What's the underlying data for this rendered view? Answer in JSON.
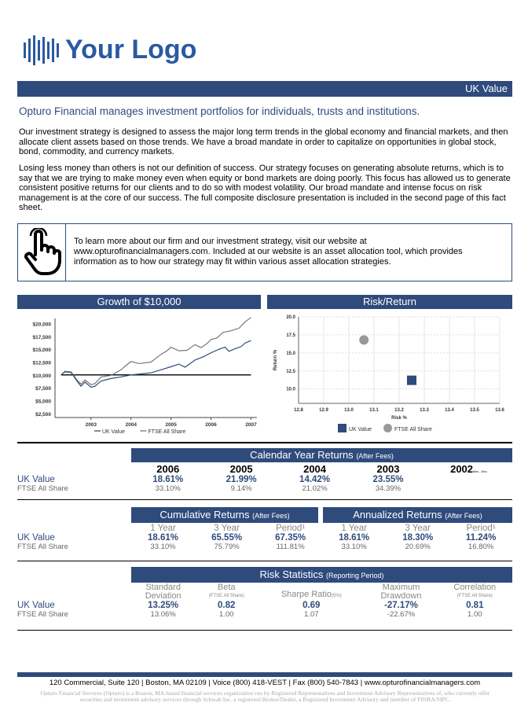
{
  "logo": {
    "text": "Your Logo"
  },
  "header": {
    "title": "UK Value"
  },
  "tagline": "Opturo Financial manages investment portfolios for individuals, trusts and institutions.",
  "paragraphs": [
    "Our investment strategy is designed to assess the major long term trends in the global economy and financial markets, and then allocate client assets based on those trends. We have a broad mandate in order to capitalize on opportunities in global stock, bond, commodity, and currency markets.",
    "Losing less money than others is not our definition of success. Our strategy focuses on generating absolute returns, which is to say that we are trying to make money even when equity or bond markets are doing poorly. This focus has allowed us to generate consistent positive returns for our clients and to do so with modest volatility. Our broad mandate and intense focus on risk management is at the core of our success. The full composite disclosure presentation is included in the second page of this fact sheet."
  ],
  "info": {
    "icon": "hand-pointer-icon",
    "text": "To learn more about our firm and our investment strategy, visit our website at www.opturofinancialmanagers.com. Included at our website is an asset allocation tool, which provides information as to how our strategy may fit within various asset allocation strategies."
  },
  "chart_data": [
    {
      "type": "line",
      "title": "Growth of $10,000",
      "ylim": [
        2500,
        21000
      ],
      "yticks": [
        "$2,500",
        "$5,000",
        "$7,500",
        "$10,000",
        "$12,500",
        "$15,000",
        "$17,500",
        "$20,000"
      ],
      "ytick_values": [
        2500,
        5000,
        7500,
        10000,
        12500,
        15000,
        17500,
        20000
      ],
      "xticks": [
        "2003",
        "2004",
        "2005",
        "2006",
        "2007"
      ],
      "xtick_values": [
        2003,
        2004,
        2005,
        2006,
        2007
      ],
      "xlim": [
        2002.1,
        2007.05
      ],
      "baseline": 10000,
      "series": [
        {
          "name": "UK Value",
          "color": "#2f4b7c",
          "x": [
            2002.25,
            2002.35,
            2002.5,
            2002.65,
            2002.75,
            2002.85,
            2003.0,
            2003.1,
            2003.25,
            2003.5,
            2003.75,
            2004.0,
            2004.25,
            2004.5,
            2004.75,
            2005.0,
            2005.2,
            2005.35,
            2005.6,
            2005.8,
            2006.0,
            2006.2,
            2006.35,
            2006.45,
            2006.6,
            2006.75,
            2006.85,
            2007.0
          ],
          "y": [
            10000,
            10600,
            10500,
            8800,
            7800,
            8600,
            7600,
            7800,
            8800,
            9300,
            9600,
            10000,
            10200,
            10400,
            11000,
            11600,
            12100,
            11500,
            12900,
            13500,
            14300,
            15000,
            15400,
            14600,
            15100,
            15500,
            16200,
            16700
          ]
        },
        {
          "name": "FTSE All Share",
          "color": "#777777",
          "x": [
            2002.25,
            2002.35,
            2002.5,
            2002.65,
            2002.75,
            2002.85,
            2003.0,
            2003.1,
            2003.25,
            2003.5,
            2003.75,
            2003.9,
            2004.0,
            2004.2,
            2004.5,
            2004.75,
            2004.9,
            2005.0,
            2005.2,
            2005.4,
            2005.6,
            2005.75,
            2005.9,
            2006.0,
            2006.15,
            2006.3,
            2006.5,
            2006.7,
            2006.85,
            2007.0
          ],
          "y": [
            10000,
            10700,
            10600,
            9000,
            8200,
            9000,
            8100,
            8300,
            9600,
            9900,
            11000,
            12000,
            12600,
            12200,
            12500,
            14000,
            14700,
            15400,
            14700,
            14800,
            15900,
            15300,
            16100,
            16900,
            17200,
            18300,
            18600,
            19100,
            20300,
            21200
          ]
        }
      ]
    },
    {
      "type": "scatter",
      "title": "Risk/Return",
      "xlabel": "Risk %",
      "ylabel": "Return %",
      "xlim": [
        12.8,
        13.6
      ],
      "ylim": [
        8,
        20
      ],
      "xticks": [
        "12.8",
        "12.9",
        "13.0",
        "13.1",
        "13.2",
        "13.3",
        "13.4",
        "13.5",
        "13.6"
      ],
      "yticks": [
        "10.0",
        "12.5",
        "15.0",
        "17.5",
        "20.0"
      ],
      "points": [
        {
          "name": "UK Value",
          "x": 13.25,
          "y": 11.2,
          "color": "#2f4b7c",
          "shape": "square"
        },
        {
          "name": "FTSE All Share",
          "x": 13.06,
          "y": 16.8,
          "color": "#999999",
          "shape": "circle"
        }
      ]
    }
  ],
  "calendar": {
    "title": "Calendar Year Returns",
    "sub": "(After Fees)",
    "years": [
      "2006",
      "2005",
      "2004",
      "2003",
      "2002"
    ],
    "year_note": "Mar - Dec",
    "rows": [
      {
        "label": "UK Value",
        "values": [
          "18.61%",
          "21.99%",
          "14.42%",
          "23.55%",
          ""
        ]
      },
      {
        "label": "FTSE All Share",
        "values": [
          "33.10%",
          "9.14%",
          "21.02%",
          "34.39%",
          ""
        ]
      }
    ]
  },
  "cumulative": {
    "title": "Cumulative Returns",
    "sub": "(After Fees)",
    "cols": [
      "1 Year",
      "3 Year",
      "Period¹"
    ]
  },
  "annualized": {
    "title": "Annualized Returns",
    "sub": "(After Fees)",
    "cols": [
      "1 Year",
      "3 Year",
      "Period¹"
    ]
  },
  "returns_rows": [
    {
      "label": "UK Value",
      "values": [
        "18.61%",
        "65.55%",
        "67.35%",
        "18.61%",
        "18.30%",
        "11.24%"
      ]
    },
    {
      "label": "FTSE All Share",
      "values": [
        "33.10%",
        "75.79%",
        "111.81%",
        "33.10%",
        "20.69%",
        "16.80%"
      ]
    }
  ],
  "risk": {
    "title": "Risk Statistics",
    "sub": "(Reporting Period)",
    "cols": [
      {
        "l1": "Standard",
        "l2": "Deviation",
        "note": ""
      },
      {
        "l1": "Beta",
        "l2": "",
        "note": "(FTSE All Share)"
      },
      {
        "l1": "Sharpe Ratio",
        "l2": "",
        "note": "(5%)"
      },
      {
        "l1": "Maximum",
        "l2": "Drawdown",
        "note": ""
      },
      {
        "l1": "Correlation",
        "l2": "",
        "note": "(FTSE All Share)"
      }
    ],
    "rows": [
      {
        "label": "UK Value",
        "values": [
          "13.25%",
          "0.82",
          "0.69",
          "-27.17%",
          "0.81"
        ]
      },
      {
        "label": "FTSE All Share",
        "values": [
          "13.06%",
          "1.00",
          "1.07",
          "-22.67%",
          "1.00"
        ]
      }
    ]
  },
  "footer": {
    "address": "120 Commercial, Suite 120 | Boston, MA 02109 | Voice (800) 418-VEST | Fax (800) 540-7843  | www.opturofinancialmanagers.com",
    "disclaimer": "Opturo Financial Services (Opturo) is a Boston, MA-based financial services organization run by Registered Representatives and Investment Advisory Representatives of, who currently offer securities and investment advisory services through Schwab Inc. a registered Broker/Dealer, a Registered Investment Advisory and member of FINRA/SIPC."
  }
}
